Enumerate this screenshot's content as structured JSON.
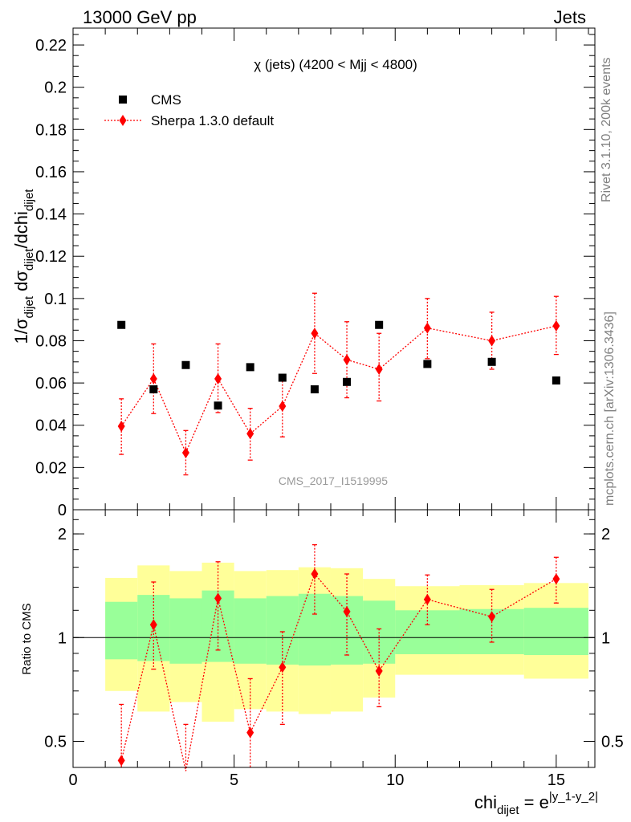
{
  "header": {
    "left": "13000 GeV pp",
    "right": "Jets"
  },
  "side_labels": {
    "rivet": "Rivet 3.1.10,  200k events",
    "mcplots": "mcplots.cern.ch [arXiv:1306.3436]"
  },
  "watermark": "CMS_2017_I1519995",
  "colors": {
    "data": "#000000",
    "mc": "#ff0000",
    "band_inner": "#99ff99",
    "band_outer": "#ffff99",
    "watermark": "#999999",
    "side_text": "#808080"
  },
  "chart_data": [
    {
      "type": "scatter",
      "title": "χ (jets) (4200 < Mjj < 4800)",
      "ylabel": "1/σdijet dσdijet/dchidijet",
      "ylabel_parts": {
        "a": "1/σ",
        "b": "dijet",
        "c": " dσ",
        "d": "dijet",
        "e": "/dchi",
        "f": "dijet"
      },
      "xlim": [
        0,
        16.2
      ],
      "ylim": [
        0,
        0.228
      ],
      "yticks": [
        0,
        0.02,
        0.04,
        0.06,
        0.08,
        0.1,
        0.12,
        0.14,
        0.16,
        0.18,
        0.2,
        0.22
      ],
      "ytick_labels": [
        "0",
        "0.02",
        "0.04",
        "0.06",
        "0.08",
        "0.1",
        "0.12",
        "0.14",
        "0.16",
        "0.18",
        "0.2",
        "0.22"
      ],
      "legend_position": "top-left",
      "series": [
        {
          "name": "CMS",
          "marker": "square",
          "x": [
            1.5,
            2.5,
            3.5,
            4.5,
            5.5,
            6.5,
            7.5,
            8.5,
            9.5,
            11,
            13,
            15
          ],
          "y": [
            0.0875,
            0.057,
            0.0685,
            0.0493,
            0.0675,
            0.0625,
            0.057,
            0.0605,
            0.0875,
            0.069,
            0.07,
            0.0612
          ]
        },
        {
          "name": "Sherpa 1.3.0 default",
          "marker": "diamond",
          "x": [
            1.5,
            2.5,
            3.5,
            4.5,
            5.5,
            6.5,
            7.5,
            8.5,
            9.5,
            11,
            13,
            15
          ],
          "y": [
            0.0395,
            0.062,
            0.027,
            0.062,
            0.036,
            0.049,
            0.0835,
            0.071,
            0.0665,
            0.086,
            0.08,
            0.087
          ],
          "err_low": [
            0.0133,
            0.0165,
            0.0105,
            0.016,
            0.0125,
            0.0145,
            0.019,
            0.018,
            0.015,
            0.0145,
            0.0135,
            0.0135
          ],
          "err_high": [
            0.013,
            0.0165,
            0.0105,
            0.0165,
            0.012,
            0.015,
            0.019,
            0.018,
            0.017,
            0.014,
            0.0135,
            0.014
          ]
        }
      ]
    },
    {
      "type": "scatter",
      "ylabel": "Ratio to CMS",
      "xlabel": "chi",
      "xlabel_parts": {
        "a": "chi",
        "b": "dijet",
        "c": " = e",
        "d": "|y_1-y_2|"
      },
      "xlim": [
        0,
        16.2
      ],
      "ylim": [
        0.42,
        2.35
      ],
      "log_y": true,
      "xticks": [
        0,
        5,
        10,
        15
      ],
      "xtick_labels": [
        "0",
        "5",
        "10",
        "15"
      ],
      "yticks": [
        0.5,
        1,
        2
      ],
      "ytick_labels": [
        "0.5",
        "1",
        "2"
      ],
      "bands": {
        "bin_edges": [
          1,
          2,
          3,
          4,
          5,
          6,
          7,
          8,
          9,
          10,
          12,
          14,
          16
        ],
        "inner_low": [
          0.865,
          0.855,
          0.84,
          0.85,
          0.84,
          0.835,
          0.83,
          0.835,
          0.84,
          0.895,
          0.895,
          0.89
        ],
        "inner_high": [
          1.27,
          1.33,
          1.3,
          1.37,
          1.3,
          1.32,
          1.34,
          1.32,
          1.28,
          1.2,
          1.21,
          1.22
        ],
        "outer_low": [
          0.7,
          0.61,
          0.65,
          0.57,
          0.62,
          0.61,
          0.6,
          0.61,
          0.67,
          0.78,
          0.78,
          0.76
        ],
        "outer_high": [
          1.49,
          1.62,
          1.56,
          1.65,
          1.56,
          1.57,
          1.6,
          1.59,
          1.48,
          1.41,
          1.42,
          1.44
        ]
      },
      "series": [
        {
          "name": "Sherpa 1.3.0 default",
          "marker": "diamond",
          "x": [
            1.5,
            2.5,
            3.5,
            4.5,
            5.5,
            6.5,
            7.5,
            8.5,
            9.5,
            11,
            13,
            15
          ],
          "y": [
            0.44,
            1.09,
            0.41,
            1.3,
            0.53,
            0.82,
            1.53,
            1.19,
            0.8,
            1.29,
            1.15,
            1.48
          ],
          "err_low": [
            0.15,
            0.28,
            0.15,
            0.38,
            0.17,
            0.26,
            0.36,
            0.3,
            0.17,
            0.2,
            0.18,
            0.22
          ],
          "err_high": [
            0.2,
            0.36,
            0.15,
            0.36,
            0.23,
            0.22,
            0.33,
            0.34,
            0.26,
            0.23,
            0.23,
            0.23
          ]
        }
      ]
    }
  ]
}
